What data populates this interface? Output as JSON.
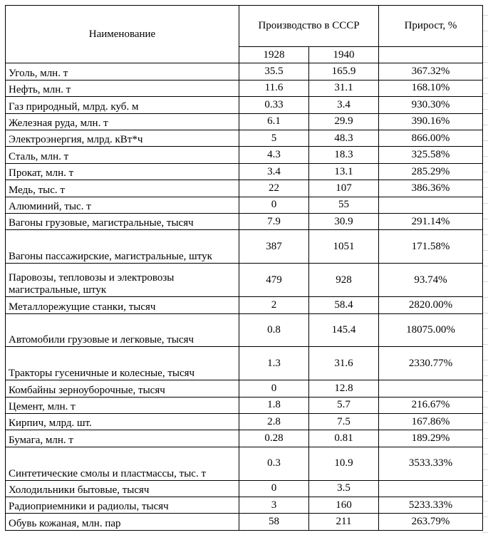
{
  "header": {
    "name": "Наименование",
    "production": "Производство в СССР",
    "growth": "Прирост, %",
    "year1": "1928",
    "year2": "1940"
  },
  "rows": [
    {
      "name": "Уголь, млн. т",
      "y1928": "35.5",
      "y1940": "165.9",
      "growth": "367.32%"
    },
    {
      "name": "Нефть, млн. т",
      "y1928": "11.6",
      "y1940": "31.1",
      "growth": "168.10%"
    },
    {
      "name": "Газ природный, млрд. куб. м",
      "y1928": "0.33",
      "y1940": "3.4",
      "growth": "930.30%"
    },
    {
      "name": "Железная руда, млн. т",
      "y1928": "6.1",
      "y1940": "29.9",
      "growth": "390.16%"
    },
    {
      "name": "Электроэнергия, млрд. кВт*ч",
      "y1928": "5",
      "y1940": "48.3",
      "growth": "866.00%"
    },
    {
      "name": "Сталь, млн. т",
      "y1928": "4.3",
      "y1940": "18.3",
      "growth": "325.58%"
    },
    {
      "name": "Прокат, млн. т",
      "y1928": "3.4",
      "y1940": "13.1",
      "growth": "285.29%"
    },
    {
      "name": "Медь, тыс. т",
      "y1928": "22",
      "y1940": "107",
      "growth": "386.36%"
    },
    {
      "name": "Алюминий, тыс. т",
      "y1928": "0",
      "y1940": "55",
      "growth": ""
    },
    {
      "name": "Вагоны грузовые, магистральные, тысяч",
      "y1928": "7.9",
      "y1940": "30.9",
      "growth": "291.14%"
    },
    {
      "name": "Вагоны пассажирские, магистральные, штук",
      "y1928": "387",
      "y1940": "1051",
      "growth": "171.58%"
    },
    {
      "name": "Паровозы, тепловозы и электровозы магистральные,  штук",
      "y1928": "479",
      "y1940": "928",
      "growth": "93.74%"
    },
    {
      "name": "Металлорежущие станки, тысяч",
      "y1928": "2",
      "y1940": "58.4",
      "growth": "2820.00%"
    },
    {
      "name": "Автомобили грузовые и легковые, тысяч",
      "y1928": "0.8",
      "y1940": "145.4",
      "growth": "18075.00%"
    },
    {
      "name": "Тракторы гусеничные и колесные, тысяч",
      "y1928": "1.3",
      "y1940": "31.6",
      "growth": "2330.77%"
    },
    {
      "name": "Комбайны зерноуборочные, тысяч",
      "y1928": "0",
      "y1940": "12.8",
      "growth": ""
    },
    {
      "name": "Цемент, млн. т",
      "y1928": "1.8",
      "y1940": "5.7",
      "growth": "216.67%"
    },
    {
      "name": "Кирпич, млрд. шт.",
      "y1928": "2.8",
      "y1940": "7.5",
      "growth": "167.86%"
    },
    {
      "name": "Бумага, млн. т",
      "y1928": "0.28",
      "y1940": "0.81",
      "growth": "189.29%"
    },
    {
      "name": "Синтетические смолы и пластмассы, тыс. т",
      "y1928": "0.3",
      "y1940": "10.9",
      "growth": "3533.33%"
    },
    {
      "name": "Холодильники бытовые, тысяч",
      "y1928": "0",
      "y1940": "3.5",
      "growth": ""
    },
    {
      "name": "Радиоприемники и радиолы, тысяч",
      "y1928": "3",
      "y1940": "160",
      "growth": "5233.33%"
    },
    {
      "name": "Обувь кожаная, млн. пар",
      "y1928": "58",
      "y1940": "211",
      "growth": "263.79%"
    }
  ]
}
